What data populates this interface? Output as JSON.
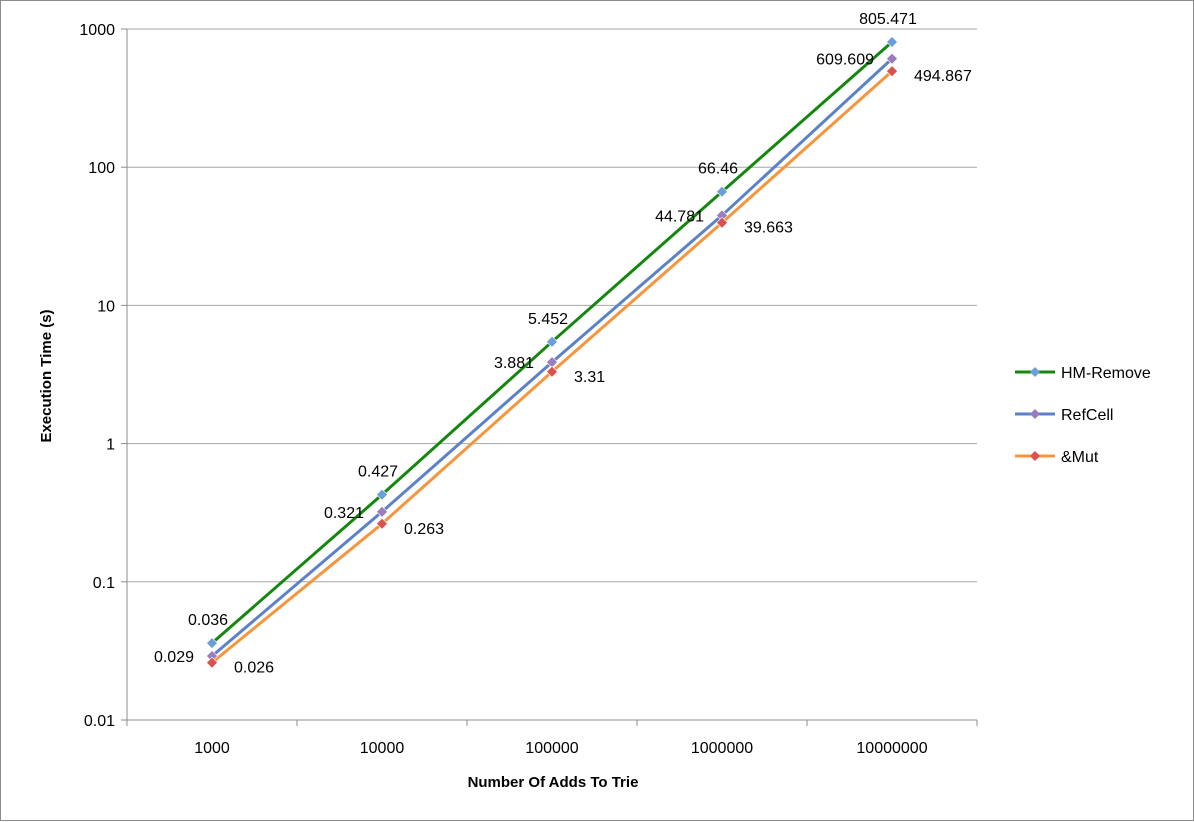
{
  "chart_data": {
    "type": "line",
    "title": "",
    "xlabel": "Number Of Adds To Trie",
    "ylabel": "Execution Time (s)",
    "y_scale": "log",
    "ylim": [
      0.01,
      1000
    ],
    "y_ticks": [
      "0.01",
      "0.1",
      "1",
      "10",
      "100",
      "1000"
    ],
    "y_tick_values": [
      0.01,
      0.1,
      1,
      10,
      100,
      1000
    ],
    "categories": [
      "1000",
      "10000",
      "100000",
      "1000000",
      "10000000"
    ],
    "grid": "horizontal",
    "legend_position": "right",
    "series": [
      {
        "name": "HM-Remove",
        "line_color": "#15870f",
        "marker_color": "#6b9fdc",
        "values": [
          0.036,
          0.427,
          5.452,
          66.46,
          805.471
        ],
        "labels": [
          "0.036",
          "0.427",
          "5.452",
          "66.46",
          "805.471"
        ]
      },
      {
        "name": "RefCell",
        "line_color": "#5b82c8",
        "marker_color": "#9a7dbd",
        "values": [
          0.029,
          0.321,
          3.881,
          44.781,
          609.609
        ],
        "labels": [
          "0.029",
          "0.321",
          "3.881",
          "44.781",
          "609.609"
        ]
      },
      {
        "name": "&Mut",
        "line_color": "#f7953d",
        "marker_color": "#d9524f",
        "values": [
          0.026,
          0.263,
          3.31,
          39.663,
          494.867
        ],
        "labels": [
          "0.026",
          "0.263",
          "3.31",
          "39.663",
          "494.867"
        ]
      }
    ]
  }
}
